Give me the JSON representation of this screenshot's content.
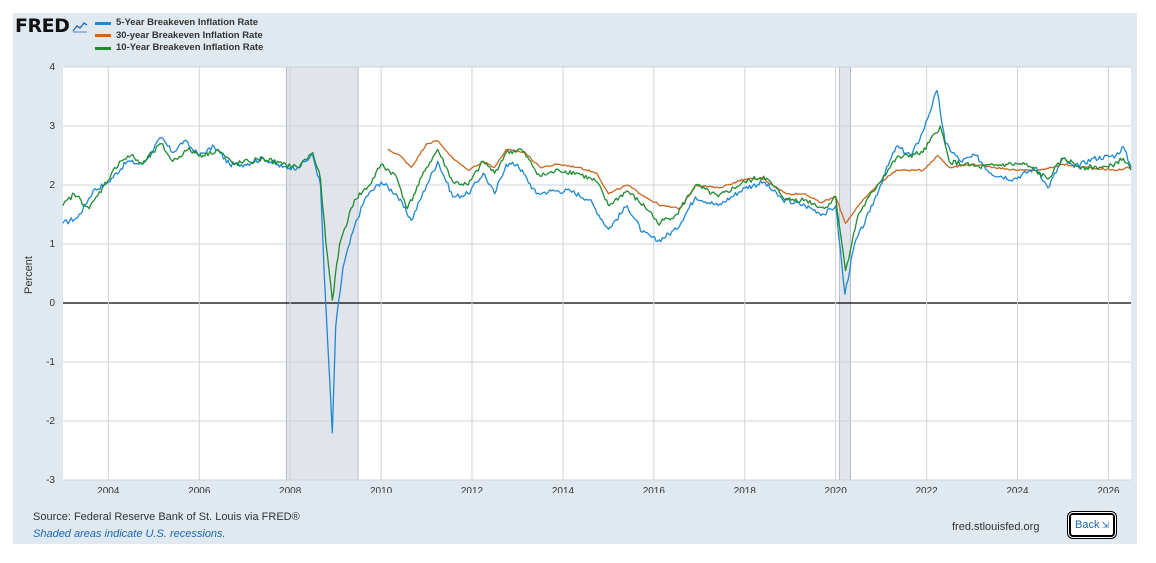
{
  "logo": {
    "text": "FRED",
    "icon": "chart-line-icon"
  },
  "source": "Source: Federal Reserve Bank of St. Louis via FRED®",
  "recession_note": "Shaded areas indicate U.S. recessions.",
  "site": "fred.stlouisfed.org",
  "back_button": {
    "label": "Back",
    "icon": "collapse-icon"
  },
  "colors": {
    "background": "#e1e9f0",
    "plot": "#ffffff",
    "recession": "#e1e5eb",
    "five_year": "#1e88d4",
    "thirty_year": "#cc6620",
    "ten_year": "#1d8c2e"
  },
  "chart_data": {
    "type": "line",
    "title": "",
    "xlabel": "",
    "ylabel": "Percent",
    "xlim": [
      "2003-01-02",
      "2026-07-01"
    ],
    "ylim": [
      -3,
      4
    ],
    "yticks": [
      -3,
      -2,
      -1,
      0,
      1,
      2,
      3,
      4
    ],
    "xticks": [
      "2004",
      "2006",
      "2008",
      "2010",
      "2012",
      "2014",
      "2016",
      "2018",
      "2020",
      "2022",
      "2024",
      "2026"
    ],
    "grid": true,
    "legend_position": "top-left",
    "recessions": [
      [
        "2007-12-01",
        "2009-06-30"
      ],
      [
        "2020-02-01",
        "2020-04-30"
      ]
    ],
    "series": [
      {
        "name": "5-Year Breakeven Inflation Rate",
        "color": "#1e88d4",
        "points": [
          [
            "2003-01-02",
            1.35
          ],
          [
            "2003-05-01",
            1.45
          ],
          [
            "2003-09-01",
            1.9
          ],
          [
            "2004-01-01",
            2.05
          ],
          [
            "2004-06-01",
            2.4
          ],
          [
            "2004-10-01",
            2.35
          ],
          [
            "2005-03-01",
            2.8
          ],
          [
            "2005-06-01",
            2.55
          ],
          [
            "2005-09-01",
            2.75
          ],
          [
            "2006-01-01",
            2.5
          ],
          [
            "2006-05-01",
            2.65
          ],
          [
            "2006-09-01",
            2.35
          ],
          [
            "2007-01-01",
            2.35
          ],
          [
            "2007-06-01",
            2.45
          ],
          [
            "2007-11-01",
            2.3
          ],
          [
            "2008-03-01",
            2.3
          ],
          [
            "2008-07-01",
            2.5
          ],
          [
            "2008-09-01",
            2.0
          ],
          [
            "2008-10-01",
            0.5
          ],
          [
            "2008-11-01",
            -0.8
          ],
          [
            "2008-12-05",
            -2.2
          ],
          [
            "2009-01-01",
            -0.4
          ],
          [
            "2009-03-01",
            0.6
          ],
          [
            "2009-06-01",
            1.3
          ],
          [
            "2009-09-01",
            1.8
          ],
          [
            "2010-01-01",
            2.05
          ],
          [
            "2010-05-01",
            1.85
          ],
          [
            "2010-09-01",
            1.4
          ],
          [
            "2011-01-01",
            2.0
          ],
          [
            "2011-04-01",
            2.4
          ],
          [
            "2011-08-01",
            1.8
          ],
          [
            "2011-12-01",
            1.85
          ],
          [
            "2012-04-01",
            2.2
          ],
          [
            "2012-07-01",
            1.85
          ],
          [
            "2012-10-01",
            2.35
          ],
          [
            "2013-01-01",
            2.35
          ],
          [
            "2013-06-01",
            1.85
          ],
          [
            "2013-10-01",
            1.9
          ],
          [
            "2014-03-01",
            1.9
          ],
          [
            "2014-08-01",
            1.75
          ],
          [
            "2015-01-01",
            1.25
          ],
          [
            "2015-06-01",
            1.65
          ],
          [
            "2015-10-01",
            1.2
          ],
          [
            "2016-02-01",
            1.05
          ],
          [
            "2016-07-01",
            1.25
          ],
          [
            "2016-12-01",
            1.8
          ],
          [
            "2017-06-01",
            1.65
          ],
          [
            "2018-01-01",
            1.95
          ],
          [
            "2018-06-01",
            2.05
          ],
          [
            "2018-11-01",
            1.75
          ],
          [
            "2019-05-01",
            1.65
          ],
          [
            "2019-10-01",
            1.5
          ],
          [
            "2020-01-01",
            1.65
          ],
          [
            "2020-03-15",
            0.15
          ],
          [
            "2020-06-01",
            1.0
          ],
          [
            "2020-10-01",
            1.55
          ],
          [
            "2021-02-01",
            2.2
          ],
          [
            "2021-05-01",
            2.65
          ],
          [
            "2021-09-01",
            2.5
          ],
          [
            "2021-12-01",
            2.9
          ],
          [
            "2022-03-25",
            3.6
          ],
          [
            "2022-06-01",
            2.7
          ],
          [
            "2022-10-01",
            2.4
          ],
          [
            "2023-02-01",
            2.5
          ],
          [
            "2023-06-01",
            2.2
          ],
          [
            "2023-12-01",
            2.1
          ],
          [
            "2024-06-01",
            2.3
          ],
          [
            "2024-09-01",
            1.95
          ],
          [
            "2025-01-01",
            2.45
          ],
          [
            "2025-04-01",
            2.3
          ],
          [
            "2025-09-01",
            2.45
          ],
          [
            "2026-03-01",
            2.5
          ],
          [
            "2026-05-01",
            2.65
          ],
          [
            "2026-07-01",
            2.3
          ]
        ]
      },
      {
        "name": "30-year Breakeven Inflation Rate",
        "color": "#cc6620",
        "points": [
          [
            "2010-02-22",
            2.6
          ],
          [
            "2010-06-01",
            2.5
          ],
          [
            "2010-09-01",
            2.3
          ],
          [
            "2011-01-01",
            2.7
          ],
          [
            "2011-04-01",
            2.75
          ],
          [
            "2011-08-01",
            2.45
          ],
          [
            "2011-12-01",
            2.25
          ],
          [
            "2012-04-01",
            2.4
          ],
          [
            "2012-07-01",
            2.3
          ],
          [
            "2012-10-01",
            2.6
          ],
          [
            "2013-03-01",
            2.55
          ],
          [
            "2013-07-01",
            2.3
          ],
          [
            "2013-12-01",
            2.35
          ],
          [
            "2014-05-01",
            2.3
          ],
          [
            "2014-10-01",
            2.2
          ],
          [
            "2015-01-01",
            1.85
          ],
          [
            "2015-06-01",
            2.0
          ],
          [
            "2015-12-01",
            1.75
          ],
          [
            "2016-03-01",
            1.65
          ],
          [
            "2016-08-01",
            1.6
          ],
          [
            "2016-12-01",
            2.0
          ],
          [
            "2017-06-01",
            1.95
          ],
          [
            "2018-01-01",
            2.1
          ],
          [
            "2018-06-01",
            2.1
          ],
          [
            "2018-12-01",
            1.85
          ],
          [
            "2019-05-01",
            1.85
          ],
          [
            "2019-09-01",
            1.7
          ],
          [
            "2020-01-01",
            1.8
          ],
          [
            "2020-03-20",
            1.35
          ],
          [
            "2020-07-01",
            1.65
          ],
          [
            "2020-12-01",
            2.0
          ],
          [
            "2021-05-01",
            2.25
          ],
          [
            "2021-12-01",
            2.25
          ],
          [
            "2022-04-01",
            2.5
          ],
          [
            "2022-07-01",
            2.3
          ],
          [
            "2023-01-01",
            2.35
          ],
          [
            "2023-07-01",
            2.3
          ],
          [
            "2024-01-01",
            2.25
          ],
          [
            "2024-07-01",
            2.25
          ],
          [
            "2025-01-01",
            2.35
          ],
          [
            "2025-07-01",
            2.3
          ],
          [
            "2026-03-01",
            2.25
          ],
          [
            "2026-07-01",
            2.3
          ]
        ]
      },
      {
        "name": "10-Year Breakeven Inflation Rate",
        "color": "#1d8c2e",
        "points": [
          [
            "2003-01-02",
            1.65
          ],
          [
            "2003-04-01",
            1.85
          ],
          [
            "2003-08-01",
            1.6
          ],
          [
            "2003-12-01",
            2.0
          ],
          [
            "2004-04-01",
            2.4
          ],
          [
            "2004-07-01",
            2.5
          ],
          [
            "2004-10-01",
            2.35
          ],
          [
            "2005-03-01",
            2.7
          ],
          [
            "2005-06-01",
            2.4
          ],
          [
            "2005-10-01",
            2.6
          ],
          [
            "2006-02-01",
            2.5
          ],
          [
            "2006-06-01",
            2.6
          ],
          [
            "2006-10-01",
            2.35
          ],
          [
            "2007-02-01",
            2.4
          ],
          [
            "2007-06-01",
            2.45
          ],
          [
            "2007-11-01",
            2.35
          ],
          [
            "2008-03-01",
            2.3
          ],
          [
            "2008-07-01",
            2.55
          ],
          [
            "2008-09-01",
            2.1
          ],
          [
            "2008-10-15",
            1.0
          ],
          [
            "2008-12-05",
            0.05
          ],
          [
            "2009-02-01",
            1.0
          ],
          [
            "2009-06-01",
            1.75
          ],
          [
            "2009-10-01",
            2.0
          ],
          [
            "2010-01-01",
            2.35
          ],
          [
            "2010-05-01",
            2.15
          ],
          [
            "2010-08-01",
            1.6
          ],
          [
            "2011-01-01",
            2.3
          ],
          [
            "2011-04-01",
            2.6
          ],
          [
            "2011-08-01",
            2.05
          ],
          [
            "2011-12-01",
            2.0
          ],
          [
            "2012-04-01",
            2.4
          ],
          [
            "2012-07-01",
            2.2
          ],
          [
            "2012-10-01",
            2.55
          ],
          [
            "2013-02-01",
            2.6
          ],
          [
            "2013-07-01",
            2.15
          ],
          [
            "2013-12-01",
            2.25
          ],
          [
            "2014-05-01",
            2.2
          ],
          [
            "2014-10-01",
            2.05
          ],
          [
            "2015-01-01",
            1.65
          ],
          [
            "2015-06-01",
            1.9
          ],
          [
            "2015-12-01",
            1.55
          ],
          [
            "2016-02-01",
            1.35
          ],
          [
            "2016-07-01",
            1.5
          ],
          [
            "2016-12-01",
            2.0
          ],
          [
            "2017-06-01",
            1.8
          ],
          [
            "2018-01-01",
            2.05
          ],
          [
            "2018-06-01",
            2.15
          ],
          [
            "2018-12-01",
            1.75
          ],
          [
            "2019-05-01",
            1.75
          ],
          [
            "2019-10-01",
            1.6
          ],
          [
            "2020-01-01",
            1.8
          ],
          [
            "2020-03-20",
            0.55
          ],
          [
            "2020-07-01",
            1.5
          ],
          [
            "2020-12-01",
            2.0
          ],
          [
            "2021-05-01",
            2.45
          ],
          [
            "2021-12-01",
            2.55
          ],
          [
            "2022-04-20",
            3.0
          ],
          [
            "2022-07-01",
            2.4
          ],
          [
            "2022-11-01",
            2.35
          ],
          [
            "2023-03-01",
            2.3
          ],
          [
            "2023-10-01",
            2.35
          ],
          [
            "2024-03-01",
            2.35
          ],
          [
            "2024-09-01",
            2.1
          ],
          [
            "2025-01-01",
            2.45
          ],
          [
            "2025-06-01",
            2.3
          ],
          [
            "2026-01-01",
            2.3
          ],
          [
            "2026-05-01",
            2.45
          ],
          [
            "2026-07-01",
            2.25
          ]
        ]
      }
    ]
  }
}
